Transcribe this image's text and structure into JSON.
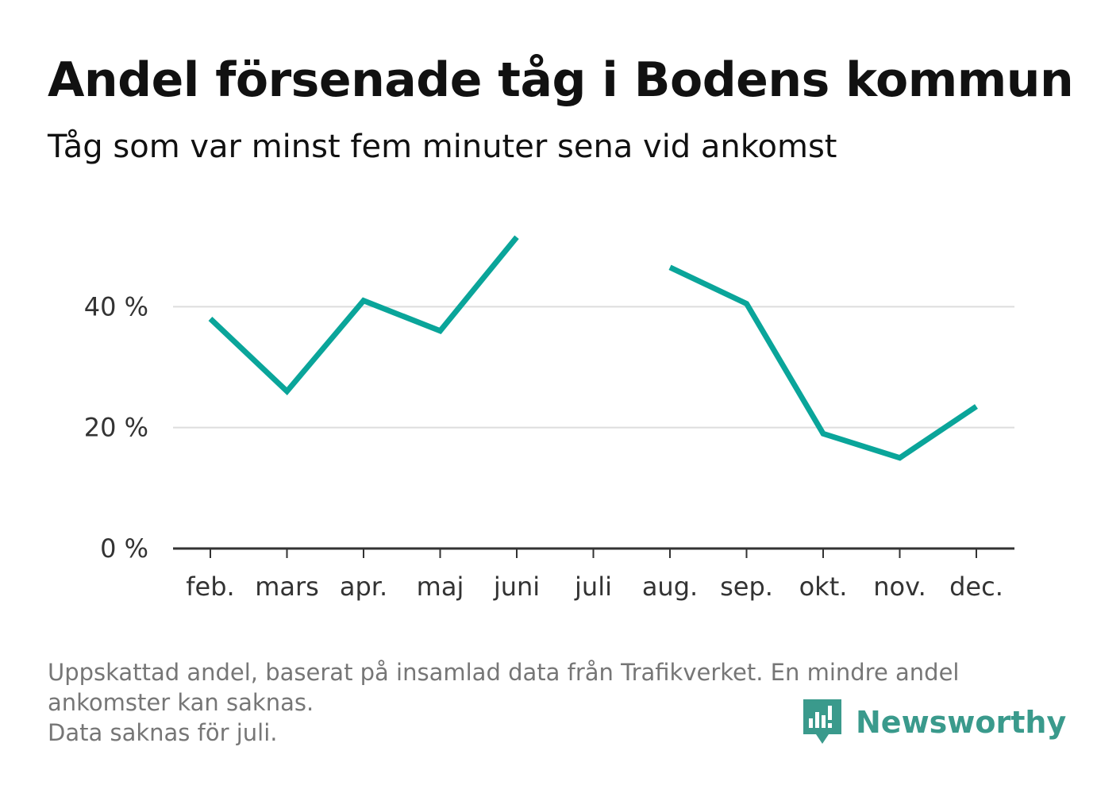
{
  "title": "Andel försenade tåg i Bodens kommun",
  "subtitle": "Tåg som var minst fem minuter sena vid ankomst",
  "footnote": [
    "Uppskattad andel, baserat på insamlad data från Trafikverket. En mindre andel",
    "ankomster kan saknas.",
    "Data saknas för juli."
  ],
  "brand": {
    "name": "Newsworthy",
    "icon": "bar-chart-speech-bubble-icon"
  },
  "colors": {
    "line": "#0aa59a",
    "grid": "#dddddd",
    "axis": "#333333",
    "brand": "#3a9a8c"
  },
  "chart_data": {
    "type": "line",
    "title": "Andel försenade tåg i Bodens kommun",
    "subtitle": "Tåg som var minst fem minuter sena vid ankomst",
    "categories": [
      "feb.",
      "mars",
      "apr.",
      "maj",
      "juni",
      "juli",
      "aug.",
      "sep.",
      "okt.",
      "nov.",
      "dec."
    ],
    "values": [
      38,
      26,
      41,
      36,
      51.5,
      null,
      46.5,
      40.5,
      19,
      15,
      23.5
    ],
    "yticks": [
      0,
      20,
      40
    ],
    "ytick_labels": [
      "0 %",
      "20 %",
      "40 %"
    ],
    "ylim": [
      0,
      60
    ],
    "grid": true,
    "legend": false
  }
}
